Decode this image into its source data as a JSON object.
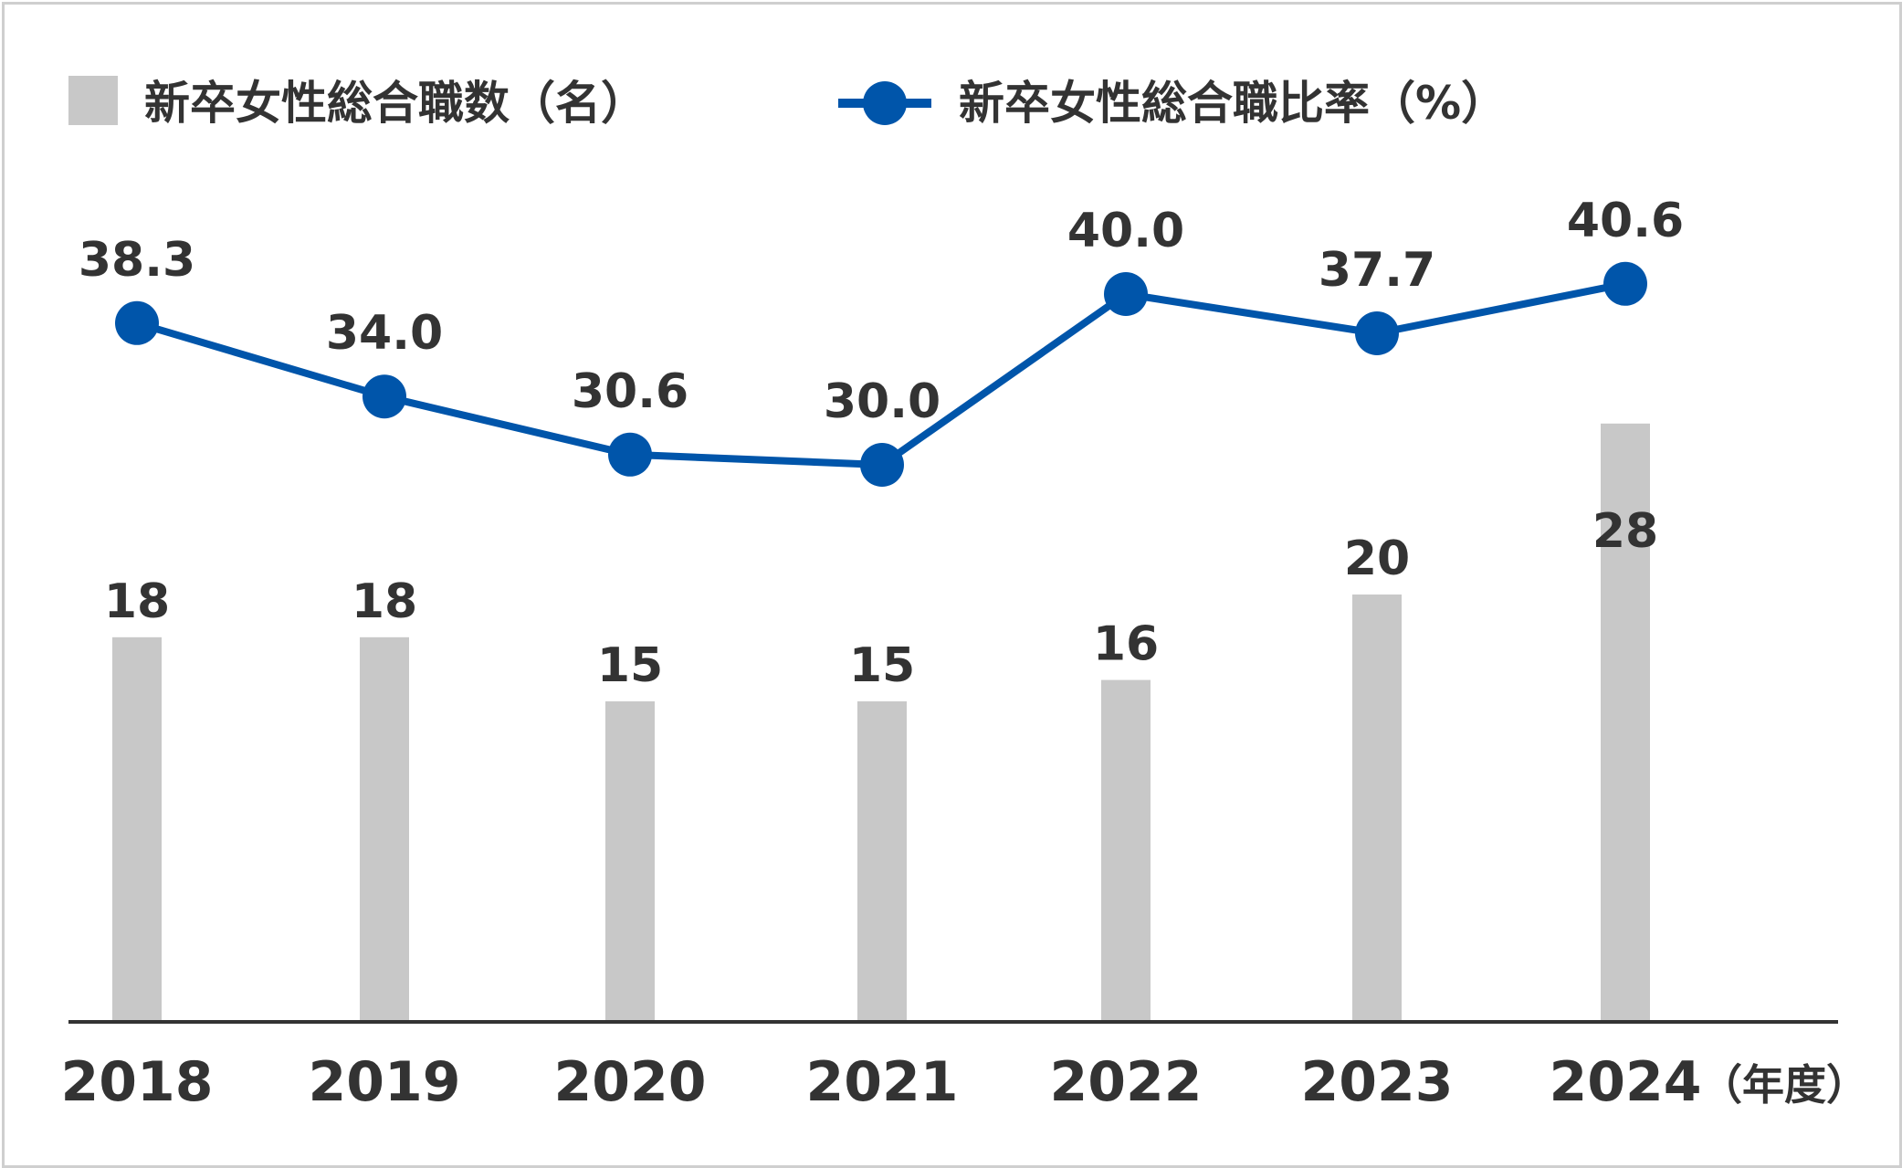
{
  "legend": {
    "bar_label": "新卒女性総合職数（名）",
    "line_label": "新卒女性総合職比率（%）"
  },
  "x_unit": "（年度）",
  "colors": {
    "bar": "#c8c8c8",
    "line": "#0055aa",
    "text": "#333333",
    "axis": "#333333"
  },
  "chart_data": {
    "type": "bar",
    "categories": [
      "2018",
      "2019",
      "2020",
      "2021",
      "2022",
      "2023",
      "2024"
    ],
    "series": [
      {
        "name": "新卒女性総合職数（名）",
        "type": "bar",
        "values": [
          18,
          18,
          15,
          15,
          16,
          20,
          28
        ],
        "labels": [
          "18",
          "18",
          "15",
          "15",
          "16",
          "20",
          "28"
        ]
      },
      {
        "name": "新卒女性総合職比率（%）",
        "type": "line",
        "values": [
          38.3,
          34.0,
          30.6,
          30.0,
          40.0,
          37.7,
          40.6
        ],
        "labels": [
          "38.3",
          "34.0",
          "30.6",
          "30.0",
          "40.0",
          "37.7",
          "40.6"
        ]
      }
    ],
    "legend_position": "top-left",
    "grid": false
  }
}
